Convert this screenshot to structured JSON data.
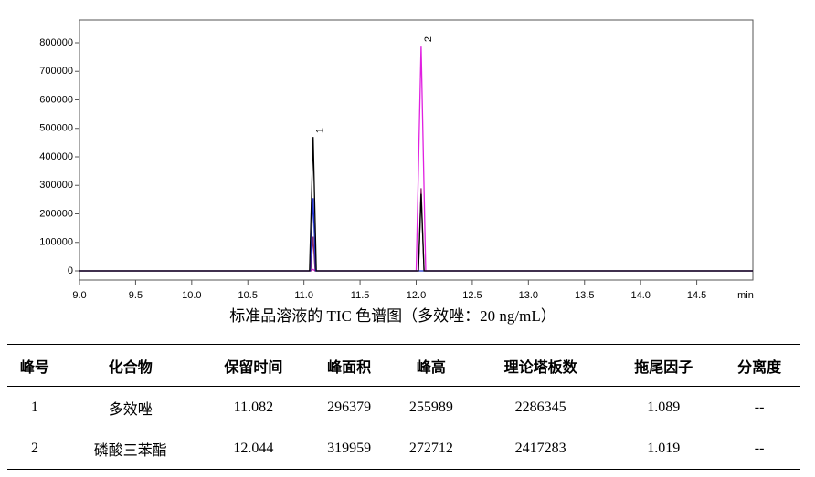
{
  "chart_data": {
    "type": "line",
    "caption": "标准品溶液的 TIC 色谱图（多效唑：20 ng/mL）",
    "x_label": "min",
    "xlim": [
      9.0,
      15.0
    ],
    "xticks": [
      {
        "value": 9,
        "label": "9.0"
      },
      9.5,
      {
        "value": 10,
        "label": "10.0"
      },
      10.5,
      {
        "value": 11,
        "label": "11.0"
      },
      11.5,
      {
        "value": 12,
        "label": "12.0"
      },
      12.5,
      {
        "value": 13,
        "label": "13.0"
      },
      13.5,
      {
        "value": 14,
        "label": "14.0"
      },
      14.5
    ],
    "ylim": [
      -32000,
      880000
    ],
    "yticks": [
      0,
      100000,
      200000,
      300000,
      400000,
      500000,
      600000,
      700000,
      800000
    ],
    "series": [
      {
        "color": "#e020e0",
        "x": [
          9.0,
          11.06,
          11.082,
          11.1,
          12.0,
          12.044,
          12.085,
          15.0
        ],
        "values": [
          0,
          0,
          5000,
          0,
          0,
          790000,
          0,
          0
        ]
      },
      {
        "color": "#8a2a6a",
        "x": [
          9.0,
          11.06,
          11.082,
          11.1,
          12.02,
          12.044,
          12.07,
          15.0
        ],
        "values": [
          0,
          0,
          120000,
          0,
          0,
          290000,
          0,
          0
        ]
      },
      {
        "color": "#1f2fcc",
        "x": [
          9.0,
          11.055,
          11.082,
          11.105,
          15.0
        ],
        "values": [
          0,
          0,
          255000,
          0,
          0
        ]
      },
      {
        "color": "#000000",
        "x": [
          9.0,
          11.05,
          11.082,
          11.11,
          12.02,
          12.044,
          12.07,
          15.0
        ],
        "values": [
          0,
          0,
          470000,
          0,
          0,
          270000,
          0,
          0
        ]
      }
    ],
    "annotations": [
      {
        "text": "1",
        "x": 11.082,
        "y": 470000
      },
      {
        "text": "2",
        "x": 12.044,
        "y": 790000
      }
    ]
  },
  "table": {
    "header": [
      "峰号",
      "化合物",
      "保留时间",
      "峰面积",
      "峰高",
      "理论塔板数",
      "拖尾因子",
      "分离度"
    ],
    "rows": [
      [
        "1",
        "多效唑",
        "11.082",
        "296379",
        "255989",
        "2286345",
        "1.089",
        "--"
      ],
      [
        "2",
        "磷酸三苯酯",
        "12.044",
        "319959",
        "272712",
        "2417283",
        "1.019",
        "--"
      ]
    ]
  }
}
